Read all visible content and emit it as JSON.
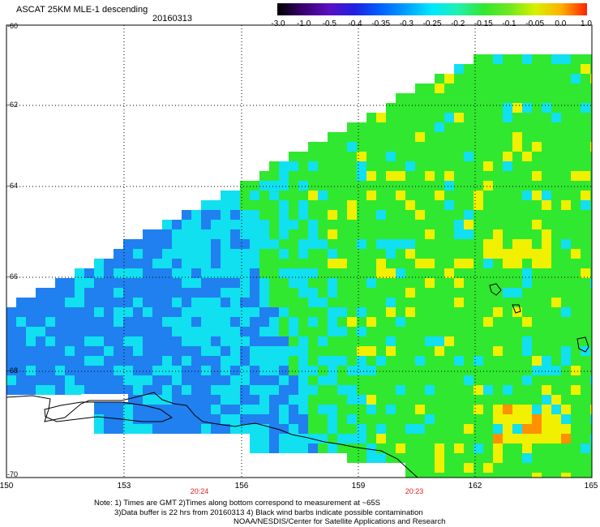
{
  "header": {
    "title": "ASCAT 25KM MLE-1 descending",
    "date": "20160313"
  },
  "colorbar": {
    "ticks": [
      "-3.0",
      "-1.0",
      "-0.5",
      "-0.4",
      "-0.35",
      "-0.3",
      "-0.25",
      "-0.2",
      "-0.15",
      "-0.1",
      "-0.05",
      "0.0",
      "1.0"
    ],
    "colors": [
      "#000000",
      "#3a0070",
      "#5a10c0",
      "#2020e0",
      "#0060ff",
      "#00a0ff",
      "#00e8ff",
      "#20f0b0",
      "#30e830",
      "#70e820",
      "#d8f000",
      "#ffb000",
      "#ff2000"
    ]
  },
  "map": {
    "lat_labels": [
      "-60",
      "-62",
      "-64",
      "-66",
      "-68",
      "-70"
    ],
    "lon_labels": [
      "150",
      "153",
      "156",
      "159",
      "162",
      "165"
    ],
    "time_labels": [
      "20:24",
      "20:23"
    ],
    "colors": {
      "land_outline": "#000000",
      "grid": "#000000",
      "blue": "#2080f0",
      "cyan": "#10e0f0",
      "green": "#30e830",
      "yellow": "#f0f000",
      "orange": "#ff9000",
      "red": "#ff3000"
    }
  },
  "notes": {
    "line1": "Note: 1) Times are GMT 2)Times along bottom correspond to measurement at ~65S",
    "line2": "3)Data buffer is 22 hrs from 20160313 4) Black wind barbs indicate possible contamination",
    "line3": "NOAA/NESDIS/Center for Satellite Applications and Research"
  }
}
